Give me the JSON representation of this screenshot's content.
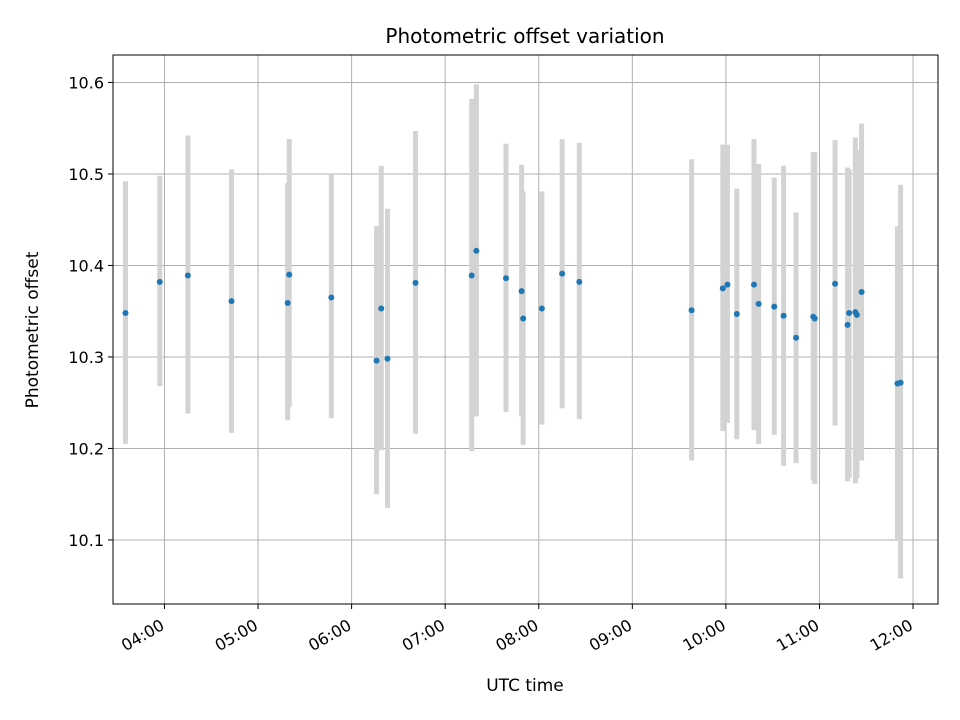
{
  "chart_data": {
    "type": "scatter",
    "title": "Photometric offset variation",
    "xlabel": "UTC time",
    "ylabel": "Photometric offset",
    "grid": true,
    "x_ticks": [
      "04:00",
      "05:00",
      "06:00",
      "07:00",
      "08:00",
      "09:00",
      "10:00",
      "11:00",
      "12:00"
    ],
    "y_ticks": [
      "10.1",
      "10.2",
      "10.3",
      "10.4",
      "10.5",
      "10.6"
    ],
    "xlim": [
      "03:27",
      "12:16"
    ],
    "ylim": [
      10.03,
      10.63
    ],
    "colors": {
      "point": "#1f77b4",
      "errorbar": "#d3d3d3",
      "grid": "#b0b0b0"
    },
    "series": [
      {
        "points": [
          {
            "x": "03:35",
            "y": 10.348,
            "ylo": 10.205,
            "yhi": 10.492
          },
          {
            "x": "03:57",
            "y": 10.382,
            "ylo": 10.268,
            "yhi": 10.498
          },
          {
            "x": "04:15",
            "y": 10.389,
            "ylo": 10.238,
            "yhi": 10.542
          },
          {
            "x": "04:43",
            "y": 10.361,
            "ylo": 10.217,
            "yhi": 10.505
          },
          {
            "x": "05:19",
            "y": 10.359,
            "ylo": 10.231,
            "yhi": 10.49
          },
          {
            "x": "05:20",
            "y": 10.39,
            "ylo": 10.245,
            "yhi": 10.538
          },
          {
            "x": "05:47",
            "y": 10.365,
            "ylo": 10.233,
            "yhi": 10.5
          },
          {
            "x": "06:16",
            "y": 10.296,
            "ylo": 10.15,
            "yhi": 10.443
          },
          {
            "x": "06:19",
            "y": 10.353,
            "ylo": 10.198,
            "yhi": 10.509
          },
          {
            "x": "06:23",
            "y": 10.298,
            "ylo": 10.135,
            "yhi": 10.462
          },
          {
            "x": "06:41",
            "y": 10.381,
            "ylo": 10.216,
            "yhi": 10.547
          },
          {
            "x": "07:17",
            "y": 10.389,
            "ylo": 10.197,
            "yhi": 10.582
          },
          {
            "x": "07:20",
            "y": 10.416,
            "ylo": 10.235,
            "yhi": 10.598
          },
          {
            "x": "07:39",
            "y": 10.386,
            "ylo": 10.24,
            "yhi": 10.533
          },
          {
            "x": "07:49",
            "y": 10.372,
            "ylo": 10.235,
            "yhi": 10.51
          },
          {
            "x": "07:50",
            "y": 10.342,
            "ylo": 10.204,
            "yhi": 10.481
          },
          {
            "x": "08:02",
            "y": 10.353,
            "ylo": 10.226,
            "yhi": 10.481
          },
          {
            "x": "08:15",
            "y": 10.391,
            "ylo": 10.244,
            "yhi": 10.538
          },
          {
            "x": "08:26",
            "y": 10.382,
            "ylo": 10.232,
            "yhi": 10.534
          },
          {
            "x": "09:38",
            "y": 10.351,
            "ylo": 10.187,
            "yhi": 10.516
          },
          {
            "x": "09:58",
            "y": 10.375,
            "ylo": 10.219,
            "yhi": 10.532
          },
          {
            "x": "10:01",
            "y": 10.379,
            "ylo": 10.228,
            "yhi": 10.532
          },
          {
            "x": "10:07",
            "y": 10.347,
            "ylo": 10.21,
            "yhi": 10.484
          },
          {
            "x": "10:18",
            "y": 10.379,
            "ylo": 10.22,
            "yhi": 10.538
          },
          {
            "x": "10:21",
            "y": 10.358,
            "ylo": 10.205,
            "yhi": 10.511
          },
          {
            "x": "10:31",
            "y": 10.355,
            "ylo": 10.215,
            "yhi": 10.496
          },
          {
            "x": "10:37",
            "y": 10.345,
            "ylo": 10.181,
            "yhi": 10.509
          },
          {
            "x": "10:45",
            "y": 10.321,
            "ylo": 10.184,
            "yhi": 10.458
          },
          {
            "x": "10:56",
            "y": 10.344,
            "ylo": 10.165,
            "yhi": 10.524
          },
          {
            "x": "10:57",
            "y": 10.342,
            "ylo": 10.161,
            "yhi": 10.524
          },
          {
            "x": "11:10",
            "y": 10.38,
            "ylo": 10.225,
            "yhi": 10.537
          },
          {
            "x": "11:18",
            "y": 10.335,
            "ylo": 10.164,
            "yhi": 10.507
          },
          {
            "x": "11:19",
            "y": 10.348,
            "ylo": 10.168,
            "yhi": 10.505
          },
          {
            "x": "11:23",
            "y": 10.349,
            "ylo": 10.162,
            "yhi": 10.54
          },
          {
            "x": "11:24",
            "y": 10.346,
            "ylo": 10.167,
            "yhi": 10.526
          },
          {
            "x": "11:27",
            "y": 10.371,
            "ylo": 10.187,
            "yhi": 10.555
          },
          {
            "x": "11:50",
            "y": 10.271,
            "ylo": 10.1,
            "yhi": 10.443
          },
          {
            "x": "11:52",
            "y": 10.272,
            "ylo": 10.058,
            "yhi": 10.488
          }
        ]
      }
    ]
  }
}
